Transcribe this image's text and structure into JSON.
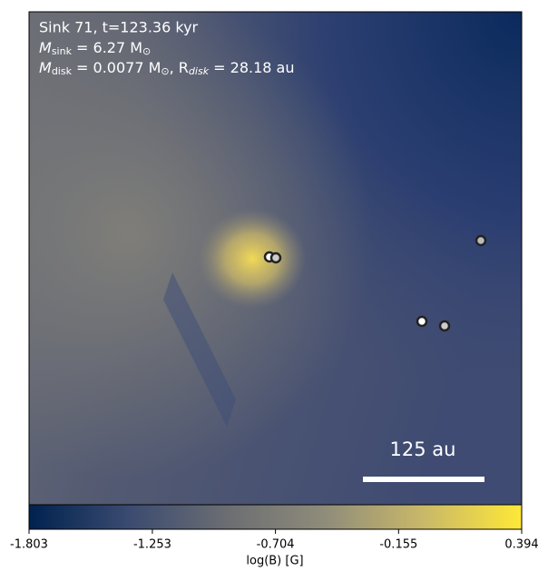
{
  "chart_data": {
    "type": "heatmap",
    "annotations": [
      {
        "text": "Sink 71, t=123.36 kyr"
      },
      {
        "parts": [
          "M",
          "sink",
          " = 6.27 M",
          "⊙"
        ]
      },
      {
        "parts": [
          "M",
          "disk",
          " = 0.0077 M",
          "⊙",
          ", R",
          "disk",
          " = 28.18 au"
        ]
      }
    ],
    "scale_bar": "125 au",
    "colorbar_label": "log(B) [G]",
    "clim": [
      -1.803,
      0.394
    ],
    "cticks": [
      -1.803,
      -1.253,
      -0.704,
      -0.155,
      0.394
    ],
    "colormap": [
      "#00224e",
      "#3a4a70",
      "#6b6d72",
      "#8f8c7a",
      "#c9b869",
      "#fee838"
    ]
  }
}
